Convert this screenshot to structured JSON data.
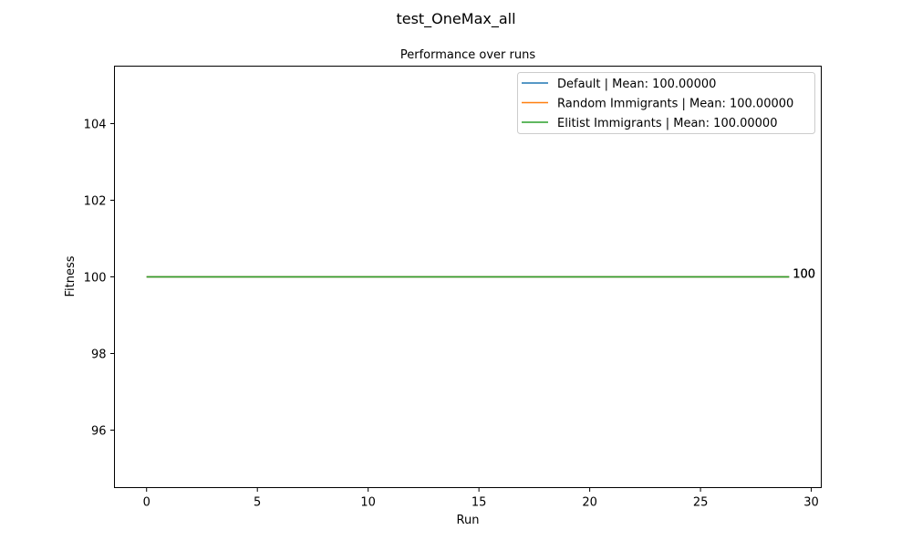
{
  "figure": {
    "suptitle": "test_OneMax_all"
  },
  "chart_data": {
    "type": "line",
    "title": "Performance over runs",
    "xlabel": "Run",
    "ylabel": "Fitness",
    "xlim": [
      -1.45,
      30.45
    ],
    "ylim": [
      94.5,
      105.5
    ],
    "xticks": [
      0,
      5,
      10,
      15,
      20,
      25,
      30
    ],
    "yticks": [
      96,
      98,
      100,
      102,
      104
    ],
    "grid": false,
    "legend_position": "upper right",
    "x": [
      0,
      1,
      2,
      3,
      4,
      5,
      6,
      7,
      8,
      9,
      10,
      11,
      12,
      13,
      14,
      15,
      16,
      17,
      18,
      19,
      20,
      21,
      22,
      23,
      24,
      25,
      26,
      27,
      28,
      29
    ],
    "series": [
      {
        "name": "Default | Mean: 100.00000",
        "color": "#1f77b4",
        "values": [
          100,
          100,
          100,
          100,
          100,
          100,
          100,
          100,
          100,
          100,
          100,
          100,
          100,
          100,
          100,
          100,
          100,
          100,
          100,
          100,
          100,
          100,
          100,
          100,
          100,
          100,
          100,
          100,
          100,
          100
        ],
        "end_label": "100"
      },
      {
        "name": "Random Immigrants | Mean: 100.00000",
        "color": "#ff7f0e",
        "values": [
          100,
          100,
          100,
          100,
          100,
          100,
          100,
          100,
          100,
          100,
          100,
          100,
          100,
          100,
          100,
          100,
          100,
          100,
          100,
          100,
          100,
          100,
          100,
          100,
          100,
          100,
          100,
          100,
          100,
          100
        ],
        "end_label": "100"
      },
      {
        "name": "Elitist Immigrants | Mean: 100.00000",
        "color": "#2ca02c",
        "values": [
          100,
          100,
          100,
          100,
          100,
          100,
          100,
          100,
          100,
          100,
          100,
          100,
          100,
          100,
          100,
          100,
          100,
          100,
          100,
          100,
          100,
          100,
          100,
          100,
          100,
          100,
          100,
          100,
          100,
          100
        ],
        "end_label": "100"
      }
    ]
  }
}
